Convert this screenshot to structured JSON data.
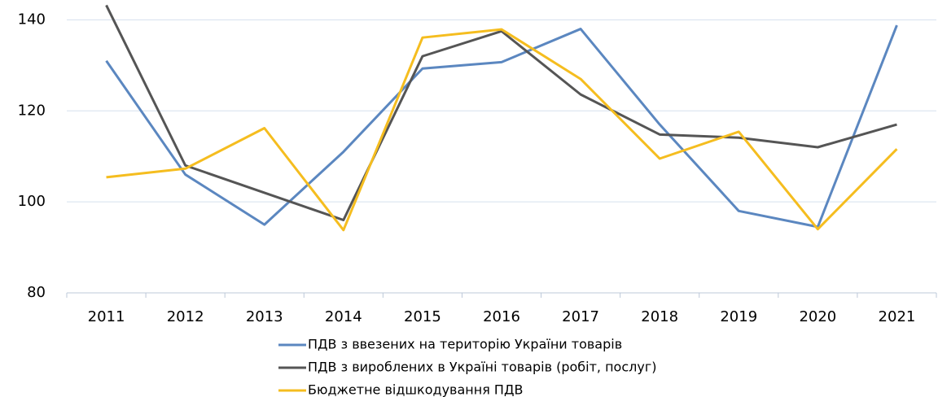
{
  "chart_data": {
    "type": "line",
    "categories": [
      "2011",
      "2012",
      "2013",
      "2014",
      "2015",
      "2016",
      "2017",
      "2018",
      "2019",
      "2020",
      "2021"
    ],
    "series": [
      {
        "name": "ПДВ з ввезених на територію України товарів",
        "color": "#5b87c0",
        "values": [
          131,
          106,
          95,
          111,
          129.3,
          130.7,
          138,
          117,
          98,
          94.5,
          138.8
        ]
      },
      {
        "name": "ПДВ з вироблених в Україні товарів (робіт, послуг)",
        "color": "#555555",
        "values": [
          143.2,
          108,
          102,
          96,
          132,
          137.5,
          123.6,
          114.8,
          114.1,
          112,
          117
        ]
      },
      {
        "name": "Бюджетне відшкодування ПДВ",
        "color": "#f5bd1f",
        "values": [
          105.4,
          107.3,
          116.2,
          93.8,
          136.1,
          137.9,
          127,
          109.5,
          115.4,
          94,
          111.6
        ]
      }
    ],
    "ylim": [
      80,
      144
    ],
    "yticks": [
      80,
      100,
      120,
      140
    ],
    "grid": true,
    "legend": "bottom"
  }
}
